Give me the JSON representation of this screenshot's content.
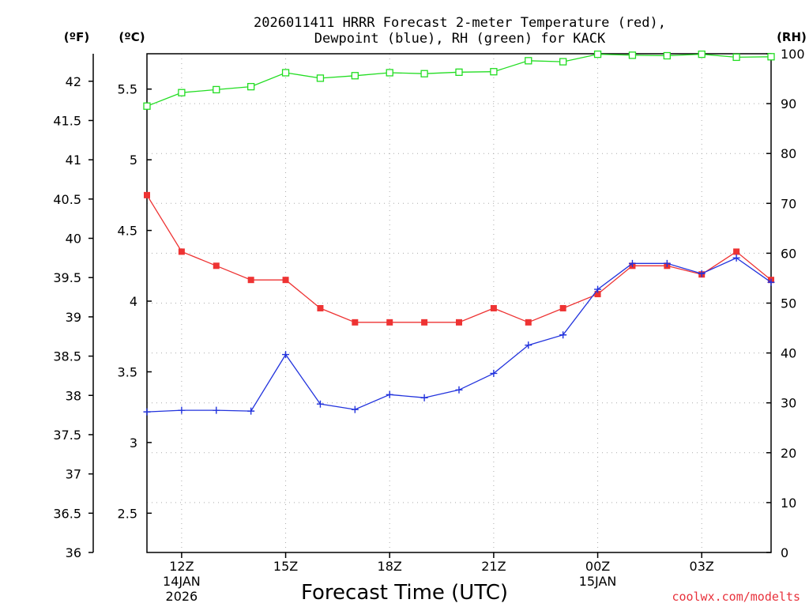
{
  "chart_data": {
    "type": "line",
    "title_lines": [
      "2026011411 HRRR Forecast 2-meter Temperature (red),",
      "Dewpoint (blue), RH (green) for KACK"
    ],
    "xlabel": "Forecast Time (UTC)",
    "credit": "coolwx.com/modelts",
    "units": {
      "left": "(ºF)",
      "middle": "(ºC)",
      "right": "(RH)"
    },
    "x": [
      11,
      12,
      13,
      14,
      15,
      16,
      17,
      18,
      19,
      20,
      21,
      22,
      23,
      24,
      25,
      26,
      27,
      28,
      29
    ],
    "xlim": [
      11,
      29
    ],
    "xticks": [
      {
        "value": 12,
        "lines": [
          "12Z",
          "14JAN",
          "2026"
        ]
      },
      {
        "value": 15,
        "lines": [
          "15Z"
        ]
      },
      {
        "value": 18,
        "lines": [
          "18Z"
        ]
      },
      {
        "value": 21,
        "lines": [
          "21Z"
        ]
      },
      {
        "value": 24,
        "lines": [
          "00Z",
          "15JAN"
        ]
      },
      {
        "value": 27,
        "lines": [
          "03Z"
        ]
      }
    ],
    "gridlines_x": [
      12,
      15,
      18,
      21,
      24,
      27
    ],
    "left_axis_F": {
      "ylim": [
        36,
        42.35
      ],
      "ticks": [
        "36",
        "36.5",
        "37",
        "37.5",
        "38",
        "38.5",
        "39",
        "39.5",
        "40",
        "40.5",
        "41",
        "41.5",
        "42"
      ],
      "tick_values": [
        36,
        36.5,
        37,
        37.5,
        38,
        38.5,
        39,
        39.5,
        40,
        40.5,
        41,
        41.5,
        42
      ]
    },
    "middle_axis_C": {
      "ticks": [
        "2.5",
        "3",
        "3.5",
        "4",
        "4.5",
        "5",
        "5.5"
      ],
      "tick_values": [
        2.5,
        3,
        3.5,
        4,
        4.5,
        5,
        5.5
      ]
    },
    "right_axis_RH": {
      "ylim": [
        0,
        100
      ],
      "ticks": [
        "0",
        "10",
        "20",
        "30",
        "40",
        "50",
        "60",
        "70",
        "80",
        "90",
        "100"
      ],
      "tick_values": [
        0,
        10,
        20,
        30,
        40,
        50,
        60,
        70,
        80,
        90,
        100
      ]
    },
    "series": [
      {
        "name": "Temperature",
        "axis": "F",
        "color": "#ee3333",
        "marker": "filled-square",
        "values": [
          40.55,
          39.83,
          39.65,
          39.47,
          39.47,
          39.11,
          38.93,
          38.93,
          38.93,
          38.93,
          39.11,
          38.93,
          39.11,
          39.29,
          39.65,
          39.65,
          39.54,
          39.83,
          39.47
        ]
      },
      {
        "name": "Dewpoint",
        "axis": "F",
        "color": "#2233dd",
        "marker": "plus",
        "values": [
          37.79,
          37.81,
          37.81,
          37.8,
          38.52,
          37.89,
          37.82,
          38.01,
          37.97,
          38.07,
          38.28,
          38.64,
          38.77,
          39.35,
          39.68,
          39.68,
          39.55,
          39.75,
          39.44
        ]
      },
      {
        "name": "RH",
        "axis": "RH",
        "color": "#22dd22",
        "marker": "open-square",
        "values": [
          89.5,
          92.2,
          92.8,
          93.4,
          96.2,
          95.1,
          95.6,
          96.2,
          96.0,
          96.3,
          96.4,
          98.6,
          98.4,
          99.9,
          99.7,
          99.6,
          99.9,
          99.3,
          99.4
        ]
      }
    ]
  }
}
